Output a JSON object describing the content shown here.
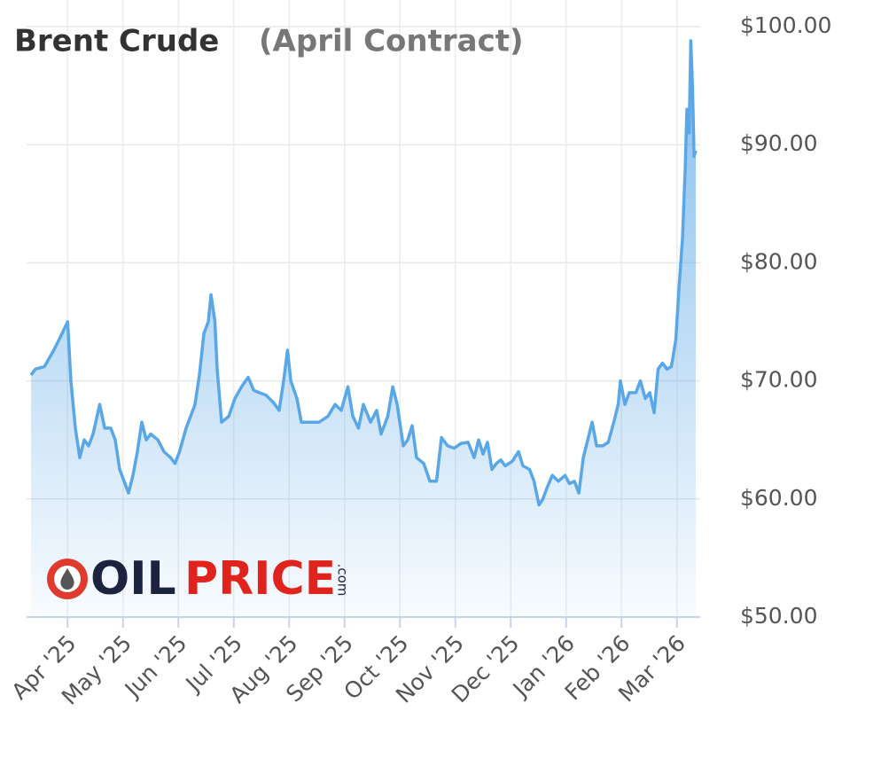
{
  "chart_data": {
    "type": "area",
    "title": "Brent Crude",
    "subtitle": "(April Contract)",
    "logo": {
      "oil": "OIL",
      "price": "PRICE",
      "com": ".com"
    },
    "color": "#5aa7e8",
    "grid": true,
    "x": [
      -0.66,
      -0.58,
      -0.42,
      -0.26,
      -0.1,
      0,
      0.06,
      0.14,
      0.22,
      0.3,
      0.38,
      0.46,
      0.58,
      0.67,
      0.78,
      0.86,
      0.94,
      1.02,
      1.1,
      1.18,
      1.26,
      1.34,
      1.42,
      1.5,
      1.63,
      1.74,
      1.86,
      1.94,
      2.02,
      2.14,
      2.22,
      2.3,
      2.38,
      2.46,
      2.54,
      2.59,
      2.66,
      2.7,
      2.78,
      2.91,
      3.02,
      3.14,
      3.26,
      3.36,
      3.46,
      3.58,
      3.71,
      3.82,
      3.9,
      3.97,
      4.03,
      4.14,
      4.22,
      4.38,
      4.54,
      4.7,
      4.83,
      4.94,
      5.06,
      5.15,
      5.25,
      5.34,
      5.47,
      5.58,
      5.66,
      5.78,
      5.87,
      5.95,
      6.06,
      6.14,
      6.22,
      6.3,
      6.43,
      6.54,
      6.66,
      6.75,
      6.86,
      6.98,
      7.1,
      7.23,
      7.34,
      7.42,
      7.5,
      7.58,
      7.66,
      7.74,
      7.82,
      7.9,
      8.03,
      8.14,
      8.22,
      8.34,
      8.42,
      8.51,
      8.58,
      8.66,
      8.75,
      8.86,
      8.98,
      9.06,
      9.15,
      9.23,
      9.31,
      9.39,
      9.47,
      9.55,
      9.66,
      9.76,
      9.86,
      9.94,
      9.98,
      10.06,
      10.14,
      10.26,
      10.34,
      10.43,
      10.51,
      10.59,
      10.66,
      10.74,
      10.82,
      10.9,
      10.98,
      11.04,
      11.1,
      11.15,
      11.18,
      11.22,
      11.25,
      11.28,
      11.31,
      11.34
    ],
    "values": [
      70.5,
      71,
      71.2,
      72.5,
      74,
      75,
      70,
      66,
      63.5,
      65,
      64.5,
      65.5,
      68,
      66,
      66,
      65,
      62.5,
      61.5,
      60.5,
      62,
      64,
      66.5,
      65,
      65.5,
      65,
      64,
      63.5,
      63,
      64,
      66,
      67,
      68,
      70.5,
      74,
      75,
      77.3,
      75,
      71,
      66.5,
      67,
      68.5,
      69.5,
      70.3,
      69.2,
      69,
      68.8,
      68.2,
      67.5,
      70,
      72.6,
      70,
      68.5,
      66.5,
      66.5,
      66.5,
      67,
      68,
      67.5,
      69.5,
      67,
      66,
      68,
      66.5,
      67.5,
      65.5,
      67,
      69.5,
      68,
      64.5,
      65,
      66.2,
      63.5,
      63,
      61.5,
      61.5,
      65.2,
      64.5,
      64.3,
      64.7,
      64.8,
      63.5,
      65,
      63.8,
      64.8,
      62.5,
      63,
      63.3,
      62.8,
      63.2,
      64,
      62.8,
      62.5,
      61.5,
      59.5,
      60,
      61,
      62,
      61.5,
      62,
      61.3,
      61.5,
      60.5,
      63.5,
      65,
      66.5,
      64.5,
      64.5,
      64.8,
      66.5,
      68,
      70,
      68,
      69,
      69,
      70,
      68.5,
      69,
      67.3,
      71,
      71.5,
      71,
      71.2,
      73.5,
      78,
      82,
      88,
      93,
      91,
      98.8,
      95,
      89,
      89.5
    ],
    "xlim": [
      -0.74,
      11.42
    ],
    "xticks": [
      {
        "value": 0,
        "label": "Apr '25"
      },
      {
        "value": 1,
        "label": "May '25"
      },
      {
        "value": 2,
        "label": "Jun '25"
      },
      {
        "value": 3,
        "label": "Jul '25"
      },
      {
        "value": 4,
        "label": "Aug '25"
      },
      {
        "value": 5,
        "label": "Sep '25"
      },
      {
        "value": 6,
        "label": "Oct '25"
      },
      {
        "value": 7,
        "label": "Nov '25"
      },
      {
        "value": 8,
        "label": "Dec '25"
      },
      {
        "value": 9,
        "label": "Jan '26"
      },
      {
        "value": 10,
        "label": "Feb '26"
      },
      {
        "value": 11,
        "label": "Mar '26"
      }
    ],
    "ylim": [
      50,
      100
    ],
    "yticks": [
      {
        "value": 50,
        "label": "$50.00"
      },
      {
        "value": 60,
        "label": "$60.00"
      },
      {
        "value": 70,
        "label": "$70.00"
      },
      {
        "value": 80,
        "label": "$80.00"
      },
      {
        "value": 90,
        "label": "$90.00"
      },
      {
        "value": 100,
        "label": "$100.00"
      }
    ]
  }
}
